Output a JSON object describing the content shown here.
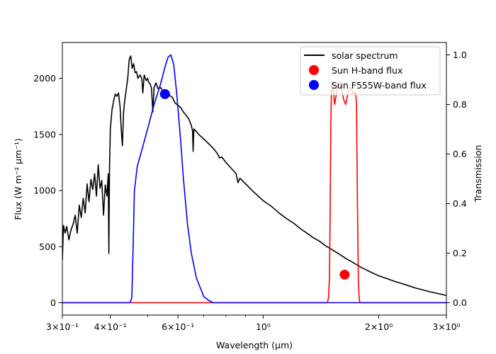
{
  "chart_data": {
    "type": "line",
    "title": "",
    "xlabel": "Wavelength (μm)",
    "ylabel_left": "Flux (W m⁻² μm⁻¹)",
    "ylabel_right": "Transmission",
    "x_scale": "log",
    "xlim": [
      0.3,
      3.0
    ],
    "ylim_left": [
      -110,
      2320
    ],
    "ylim_right": [
      -0.05,
      1.05
    ],
    "x_ticks": [
      {
        "value": 0.3,
        "label": "3×10⁻¹"
      },
      {
        "value": 0.4,
        "label": "4×10⁻¹"
      },
      {
        "value": 0.6,
        "label": "6×10⁻¹"
      },
      {
        "value": 1.0,
        "label": "10⁰"
      },
      {
        "value": 2.0,
        "label": "2×10⁰"
      },
      {
        "value": 3.0,
        "label": "3×10⁰"
      }
    ],
    "x_minor_ticks": [
      0.5,
      0.7,
      0.8,
      0.9
    ],
    "y_ticks_left": [
      0,
      500,
      1000,
      1500,
      2000
    ],
    "y_ticks_right": [
      {
        "value": 0.0,
        "label": "0.0"
      },
      {
        "value": 0.2,
        "label": "0.2"
      },
      {
        "value": 0.4,
        "label": "0.4"
      },
      {
        "value": 0.6,
        "label": "0.6"
      },
      {
        "value": 0.8,
        "label": "0.8"
      },
      {
        "value": 1.0,
        "label": "1.0"
      }
    ],
    "legend_position": "top-right",
    "legend": [
      {
        "label": "solar spectrum",
        "marker": "line",
        "color": "#000000"
      },
      {
        "label": "Sun H-band flux",
        "marker": "circle",
        "color": "#ff0000"
      },
      {
        "label": "Sun F555W-band flux",
        "marker": "circle",
        "color": "#0000ff"
      }
    ],
    "series": [
      {
        "name": "solar spectrum",
        "axis": "left",
        "color": "#000000",
        "points": [
          [
            0.3,
            380
          ],
          [
            0.302,
            690
          ],
          [
            0.305,
            620
          ],
          [
            0.308,
            680
          ],
          [
            0.312,
            560
          ],
          [
            0.316,
            650
          ],
          [
            0.32,
            700
          ],
          [
            0.324,
            780
          ],
          [
            0.328,
            620
          ],
          [
            0.332,
            870
          ],
          [
            0.336,
            760
          ],
          [
            0.34,
            930
          ],
          [
            0.344,
            800
          ],
          [
            0.348,
            1060
          ],
          [
            0.352,
            900
          ],
          [
            0.356,
            1100
          ],
          [
            0.36,
            1010
          ],
          [
            0.364,
            1150
          ],
          [
            0.368,
            950
          ],
          [
            0.372,
            1230
          ],
          [
            0.376,
            1020
          ],
          [
            0.38,
            1090
          ],
          [
            0.384,
            780
          ],
          [
            0.388,
            1050
          ],
          [
            0.392,
            950
          ],
          [
            0.395,
            1150
          ],
          [
            0.3965,
            440
          ],
          [
            0.398,
            1200
          ],
          [
            0.4,
            1550
          ],
          [
            0.404,
            1720
          ],
          [
            0.408,
            1800
          ],
          [
            0.412,
            1860
          ],
          [
            0.416,
            1840
          ],
          [
            0.42,
            1870
          ],
          [
            0.424,
            1750
          ],
          [
            0.427,
            1550
          ],
          [
            0.43,
            1400
          ],
          [
            0.433,
            1700
          ],
          [
            0.436,
            1800
          ],
          [
            0.44,
            1900
          ],
          [
            0.444,
            2000
          ],
          [
            0.448,
            2170
          ],
          [
            0.452,
            2200
          ],
          [
            0.456,
            2090
          ],
          [
            0.46,
            2130
          ],
          [
            0.464,
            2050
          ],
          [
            0.468,
            2060
          ],
          [
            0.472,
            2000
          ],
          [
            0.478,
            2030
          ],
          [
            0.483,
            2000
          ],
          [
            0.486,
            1870
          ],
          [
            0.49,
            2030
          ],
          [
            0.496,
            1980
          ],
          [
            0.5,
            2000
          ],
          [
            0.504,
            1960
          ],
          [
            0.508,
            1950
          ],
          [
            0.512,
            1910
          ],
          [
            0.516,
            1700
          ],
          [
            0.52,
            1920
          ],
          [
            0.526,
            1960
          ],
          [
            0.532,
            1910
          ],
          [
            0.54,
            1920
          ],
          [
            0.55,
            1880
          ],
          [
            0.56,
            1870
          ],
          [
            0.57,
            1850
          ],
          [
            0.58,
            1830
          ],
          [
            0.59,
            1780
          ],
          [
            0.6,
            1760
          ],
          [
            0.61,
            1740
          ],
          [
            0.62,
            1700
          ],
          [
            0.63,
            1670
          ],
          [
            0.64,
            1640
          ],
          [
            0.65,
            1580
          ],
          [
            0.655,
            1530
          ],
          [
            0.657,
            1350
          ],
          [
            0.66,
            1550
          ],
          [
            0.68,
            1500
          ],
          [
            0.7,
            1460
          ],
          [
            0.72,
            1420
          ],
          [
            0.74,
            1380
          ],
          [
            0.76,
            1330
          ],
          [
            0.77,
            1290
          ],
          [
            0.78,
            1300
          ],
          [
            0.8,
            1250
          ],
          [
            0.82,
            1210
          ],
          [
            0.85,
            1150
          ],
          [
            0.86,
            1070
          ],
          [
            0.87,
            1110
          ],
          [
            0.9,
            1060
          ],
          [
            0.93,
            1010
          ],
          [
            0.95,
            980
          ],
          [
            1.0,
            910
          ],
          [
            1.05,
            860
          ],
          [
            1.1,
            800
          ],
          [
            1.15,
            750
          ],
          [
            1.2,
            710
          ],
          [
            1.25,
            660
          ],
          [
            1.3,
            620
          ],
          [
            1.35,
            580
          ],
          [
            1.4,
            550
          ],
          [
            1.45,
            510
          ],
          [
            1.5,
            480
          ],
          [
            1.55,
            450
          ],
          [
            1.6,
            420
          ],
          [
            1.65,
            390
          ],
          [
            1.7,
            365
          ],
          [
            1.75,
            340
          ],
          [
            1.8,
            315
          ],
          [
            1.85,
            295
          ],
          [
            1.9,
            275
          ],
          [
            2.0,
            240
          ],
          [
            2.1,
            215
          ],
          [
            2.2,
            190
          ],
          [
            2.3,
            170
          ],
          [
            2.4,
            150
          ],
          [
            2.5,
            130
          ],
          [
            2.6,
            115
          ],
          [
            2.7,
            100
          ],
          [
            2.8,
            88
          ],
          [
            2.9,
            76
          ],
          [
            3.0,
            65
          ]
        ]
      },
      {
        "name": "Sun H-band flux",
        "axis": "right",
        "color": "#ff0000",
        "points": [
          [
            0.3,
            0.0
          ],
          [
            1.47,
            0.0
          ],
          [
            1.48,
            0.02
          ],
          [
            1.488,
            0.1
          ],
          [
            1.495,
            0.4
          ],
          [
            1.5,
            0.7
          ],
          [
            1.505,
            0.85
          ],
          [
            1.51,
            0.89
          ],
          [
            1.52,
            0.87
          ],
          [
            1.535,
            0.8
          ],
          [
            1.55,
            0.84
          ],
          [
            1.565,
            0.88
          ],
          [
            1.58,
            0.89
          ],
          [
            1.6,
            0.86
          ],
          [
            1.62,
            0.82
          ],
          [
            1.64,
            0.8
          ],
          [
            1.66,
            0.84
          ],
          [
            1.68,
            0.87
          ],
          [
            1.7,
            0.86
          ],
          [
            1.72,
            0.84
          ],
          [
            1.74,
            0.85
          ],
          [
            1.75,
            0.8
          ],
          [
            1.76,
            0.4
          ],
          [
            1.77,
            0.08
          ],
          [
            1.78,
            0.01
          ],
          [
            1.79,
            0.0
          ],
          [
            3.0,
            0.0
          ]
        ]
      },
      {
        "name": "Sun F555W-band flux",
        "axis": "right",
        "color": "#0000ff",
        "points": [
          [
            0.3,
            0.0
          ],
          [
            0.45,
            0.0
          ],
          [
            0.455,
            0.02
          ],
          [
            0.459,
            0.25
          ],
          [
            0.462,
            0.45
          ],
          [
            0.47,
            0.55
          ],
          [
            0.48,
            0.6
          ],
          [
            0.5,
            0.7
          ],
          [
            0.52,
            0.8
          ],
          [
            0.54,
            0.88
          ],
          [
            0.555,
            0.95
          ],
          [
            0.565,
            0.99
          ],
          [
            0.575,
            1.0
          ],
          [
            0.585,
            0.96
          ],
          [
            0.595,
            0.85
          ],
          [
            0.61,
            0.65
          ],
          [
            0.62,
            0.5
          ],
          [
            0.635,
            0.32
          ],
          [
            0.65,
            0.2
          ],
          [
            0.67,
            0.1
          ],
          [
            0.69,
            0.05
          ],
          [
            0.7,
            0.025
          ],
          [
            0.72,
            0.01
          ],
          [
            0.74,
            0.0
          ],
          [
            3.0,
            0.0
          ]
        ]
      }
    ],
    "markers": [
      {
        "name": "Sun H-band flux",
        "x": 1.63,
        "y": 250,
        "color": "#ff0000"
      },
      {
        "name": "Sun F555W-band flux",
        "x": 0.555,
        "y": 1860,
        "color": "#0000ff"
      }
    ]
  }
}
